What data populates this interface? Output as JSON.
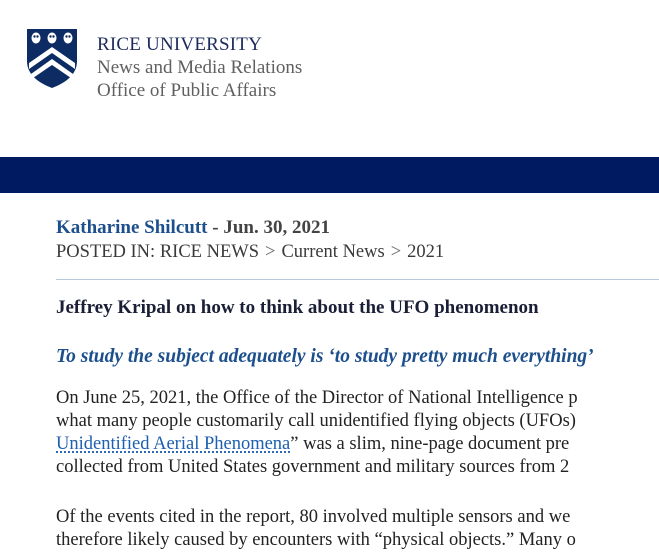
{
  "header": {
    "university": "RICE UNIVERSITY",
    "department": "News and Media Relations",
    "office": "Office of Public Affairs",
    "logo_icon": "rice-shield-logo-icon",
    "colors": {
      "navy": "#001a62",
      "link_blue": "#1c4f8c"
    }
  },
  "article": {
    "author": "Katharine Shilcutt",
    "byline_sep": " - ",
    "date": "Jun. 30, 2021",
    "posted_in_label": "POSTED IN:",
    "breadcrumbs": [
      "RICE NEWS",
      "Current News",
      "2021"
    ],
    "breadcrumb_sep": ">",
    "headline": "Jeffrey Kripal on how to think about the UFO phenomenon",
    "dek": "To study the subject adequately is ‘to study pretty much everything’",
    "p1_line1": "On June 25, 2021, the Office of the Director of National Intelligence p",
    "p1_line2": "what many people customarily call unidentified flying objects (UFOs)",
    "p1_link": "Unidentified Aerial Phenomena",
    "p1_line3_rest": "” was a slim, nine-page document pre",
    "p1_line4": "collected from United States government and military sources from 2",
    "p2_line1": "Of the events cited in the report, 80 involved multiple sensors and we",
    "p2_line2": "therefore likely caused by encounters with “physical objects.” Many o"
  }
}
